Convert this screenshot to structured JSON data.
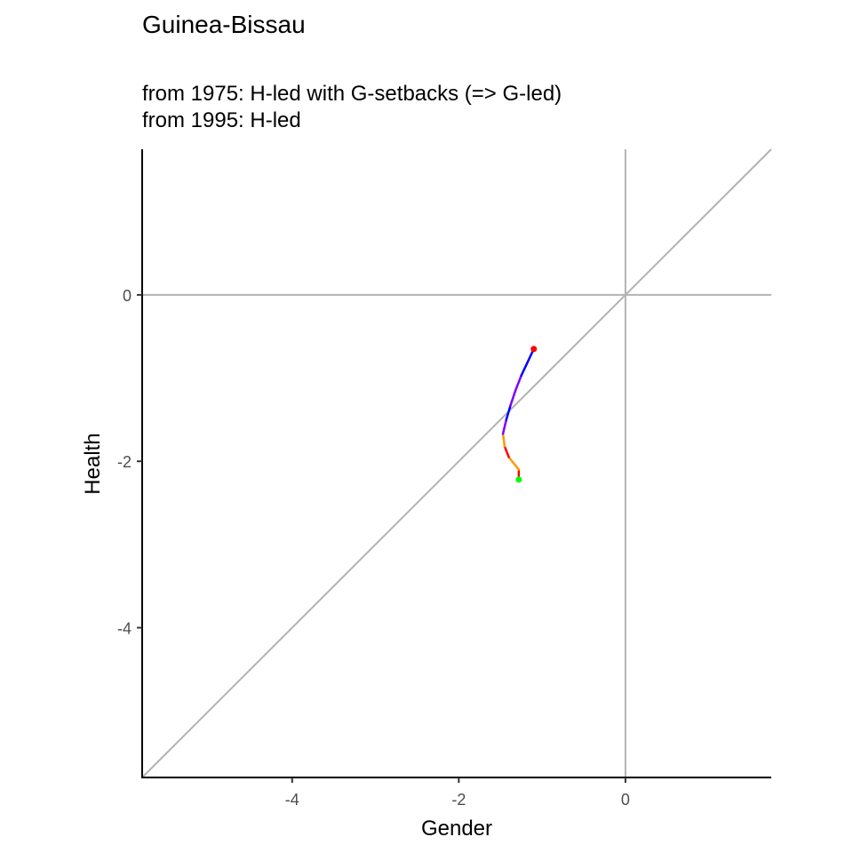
{
  "chart_data": {
    "type": "line",
    "title": "Guinea-Bissau",
    "subtitle_lines": [
      "from 1975:  H-led with G-setbacks (=> G-led)",
      "from 1995:  H-led"
    ],
    "xlabel": "Gender",
    "ylabel": "Health",
    "xlim": [
      -5.8,
      1.75
    ],
    "ylim": [
      -5.8,
      1.75
    ],
    "x_ticks": [
      -4,
      -2,
      0
    ],
    "y_ticks": [
      0,
      -2,
      -4
    ],
    "tick_labels": {
      "x": [
        "-4",
        "-2",
        "0"
      ],
      "y": [
        "0",
        "-2",
        "-4"
      ]
    },
    "reference_lines": [
      "x = 0",
      "y = 0",
      "y = x"
    ],
    "grid": false,
    "series": [
      {
        "x": [
          -1.28,
          -1.28,
          -1.4,
          -1.45,
          -1.47,
          -1.43,
          -1.38,
          -1.32,
          -1.25,
          -1.1
        ],
        "y": [
          -2.22,
          -2.1,
          -1.95,
          -1.82,
          -1.67,
          -1.5,
          -1.33,
          -1.15,
          -0.97,
          -0.65
        ],
        "colors": [
          "#ff0000",
          "#ff9900",
          "#ff0000",
          "#ff9900",
          "#8000ff",
          "#0000ff",
          "#8000ff",
          "#8000ff",
          "#0000ff"
        ],
        "start_marker_color": "#00ff00",
        "end_marker_color": "#ff0000"
      }
    ]
  }
}
